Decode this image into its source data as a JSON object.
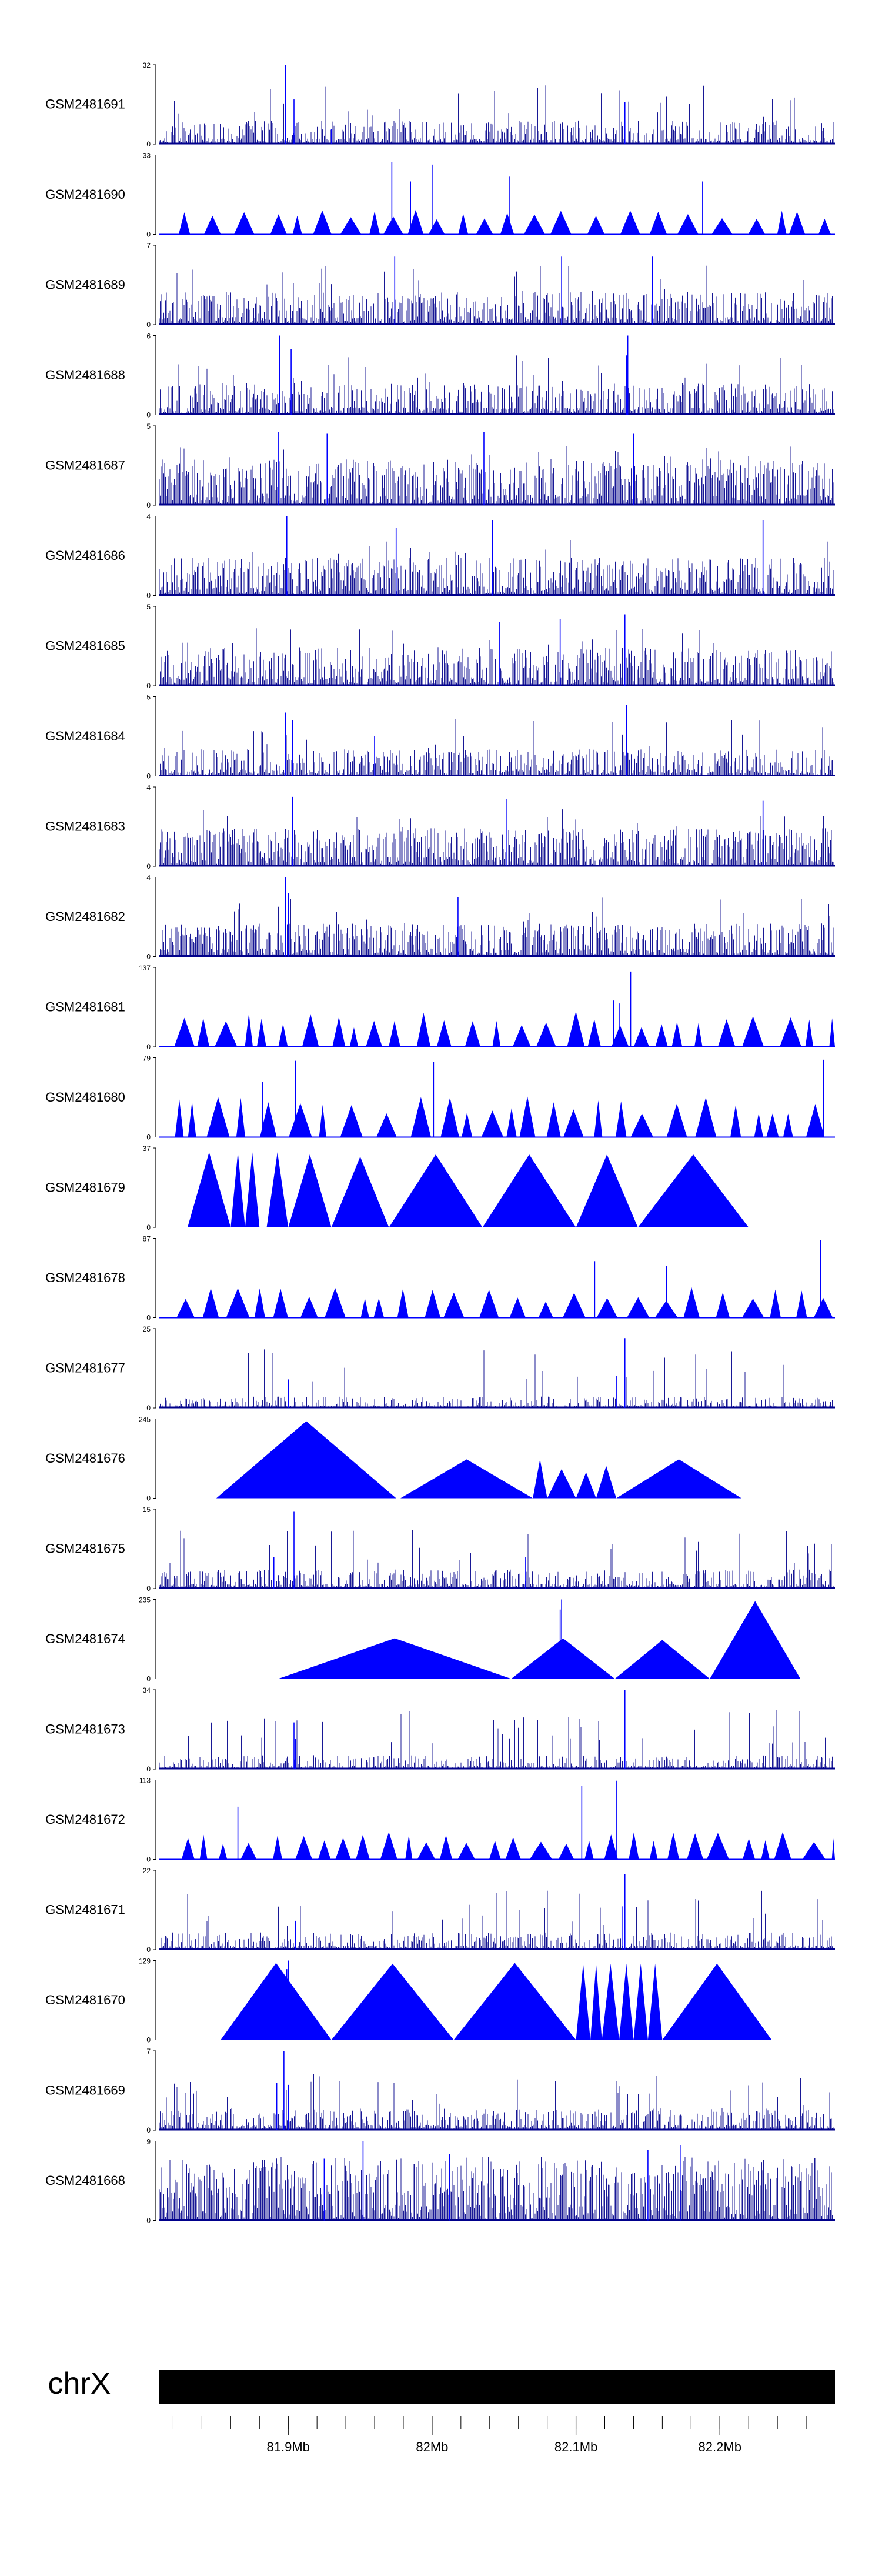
{
  "chart_data": {
    "type": "area",
    "chromosome": "chrX",
    "x_range_mb": [
      81.81,
      82.28
    ],
    "axis_ticks": [
      {
        "value": 81.9,
        "label": "81.9Mb"
      },
      {
        "value": 82.0,
        "label": "82Mb"
      },
      {
        "value": 82.1,
        "label": "82.1Mb"
      },
      {
        "value": 82.2,
        "label": "82.2Mb"
      }
    ],
    "tracks": [
      {
        "name": "GSM2481691",
        "max": 32,
        "min": 0,
        "style": "dense",
        "peaks": [
          [
            81.898,
            32
          ],
          [
            81.904,
            18
          ],
          [
            82.134,
            17
          ],
          [
            81.93,
            6
          ]
        ],
        "base": 4,
        "density": 0.35
      },
      {
        "name": "GSM2481690",
        "max": 33,
        "min": 0,
        "style": "sparse",
        "peaks": [
          [
            81.972,
            30
          ],
          [
            82.0,
            29
          ],
          [
            82.054,
            24
          ],
          [
            81.985,
            22
          ],
          [
            82.188,
            22
          ]
        ],
        "base": 10
      },
      {
        "name": "GSM2481689",
        "max": 7,
        "min": 0,
        "style": "dense",
        "peaks": [
          [
            82.09,
            6
          ],
          [
            82.153,
            6
          ],
          [
            81.974,
            6
          ]
        ],
        "base": 1.2,
        "density": 0.5
      },
      {
        "name": "GSM2481688",
        "max": 6,
        "min": 0,
        "style": "dense",
        "peaks": [
          [
            81.894,
            6
          ],
          [
            81.902,
            5
          ],
          [
            82.136,
            6
          ],
          [
            82.135,
            4.5
          ]
        ],
        "base": 1,
        "density": 0.45
      },
      {
        "name": "GSM2481687",
        "max": 5,
        "min": 0,
        "style": "dense",
        "peaks": [
          [
            81.893,
            4.6
          ],
          [
            81.927,
            4.5
          ],
          [
            82.036,
            4.6
          ],
          [
            82.14,
            4.5
          ]
        ],
        "base": 1.2,
        "density": 0.55
      },
      {
        "name": "GSM2481686",
        "max": 4,
        "min": 0,
        "style": "dense",
        "peaks": [
          [
            81.899,
            4
          ],
          [
            82.042,
            3.8
          ],
          [
            82.23,
            3.8
          ],
          [
            81.975,
            3.4
          ]
        ],
        "base": 0.8,
        "density": 0.5
      },
      {
        "name": "GSM2481685",
        "max": 5,
        "min": 0,
        "style": "dense",
        "peaks": [
          [
            82.134,
            4.5
          ],
          [
            82.089,
            4.2
          ],
          [
            82.047,
            4.0
          ]
        ],
        "base": 1,
        "density": 0.5
      },
      {
        "name": "GSM2481684",
        "max": 5,
        "min": 0,
        "style": "dense",
        "peaks": [
          [
            81.898,
            4
          ],
          [
            81.903,
            3.5
          ],
          [
            82.135,
            4.5
          ],
          [
            81.96,
            2.5
          ]
        ],
        "base": 0.7,
        "density": 0.4
      },
      {
        "name": "GSM2481683",
        "max": 4,
        "min": 0,
        "style": "dense",
        "peaks": [
          [
            81.903,
            3.5
          ],
          [
            82.052,
            3.4
          ],
          [
            82.23,
            3.3
          ]
        ],
        "base": 0.8,
        "density": 0.55
      },
      {
        "name": "GSM2481682",
        "max": 4,
        "min": 0,
        "style": "dense",
        "peaks": [
          [
            81.898,
            4
          ],
          [
            81.9,
            3.2
          ],
          [
            82.018,
            3.0
          ]
        ],
        "base": 0.7,
        "density": 0.5
      },
      {
        "name": "GSM2481681",
        "max": 137,
        "min": 0,
        "style": "sparse",
        "peaks": [
          [
            82.138,
            130
          ],
          [
            82.126,
            80
          ],
          [
            82.13,
            75
          ]
        ],
        "base": 60
      },
      {
        "name": "GSM2481680",
        "max": 79,
        "min": 0,
        "style": "sparse",
        "peaks": [
          [
            82.272,
            77
          ],
          [
            81.905,
            76
          ],
          [
            82.001,
            75
          ],
          [
            81.882,
            55
          ]
        ],
        "base": 40
      },
      {
        "name": "GSM2481679",
        "max": 37,
        "min": 0,
        "style": "triangles",
        "triangles": [
          [
            81.83,
            81.86,
            35
          ],
          [
            81.86,
            81.87,
            35
          ],
          [
            81.87,
            81.88,
            35
          ],
          [
            81.885,
            81.9,
            35
          ],
          [
            81.9,
            81.93,
            34
          ],
          [
            81.93,
            81.97,
            33
          ],
          [
            81.97,
            82.035,
            34
          ],
          [
            82.035,
            82.1,
            34
          ],
          [
            82.1,
            82.143,
            34
          ],
          [
            82.143,
            82.22,
            34
          ]
        ]
      },
      {
        "name": "GSM2481678",
        "max": 87,
        "min": 0,
        "style": "sparse",
        "peaks": [
          [
            82.27,
            85
          ],
          [
            82.113,
            62
          ],
          [
            82.163,
            57
          ]
        ],
        "base": 32
      },
      {
        "name": "GSM2481677",
        "max": 25,
        "min": 0,
        "style": "dense",
        "peaks": [
          [
            82.134,
            22
          ],
          [
            82.128,
            10
          ],
          [
            81.9,
            9
          ]
        ],
        "base": 1.5,
        "density": 0.35
      },
      {
        "name": "GSM2481676",
        "max": 245,
        "min": 0,
        "style": "triangles",
        "triangles": [
          [
            81.85,
            81.975,
            238
          ],
          [
            81.978,
            82.07,
            120
          ],
          [
            82.07,
            82.08,
            120
          ],
          [
            82.08,
            82.1,
            90
          ],
          [
            82.1,
            82.114,
            80
          ],
          [
            82.114,
            82.128,
            100
          ],
          [
            82.128,
            82.215,
            120
          ]
        ]
      },
      {
        "name": "GSM2481675",
        "max": 15,
        "min": 0,
        "style": "dense",
        "peaks": [
          [
            81.904,
            14.5
          ],
          [
            81.89,
            6
          ],
          [
            82.065,
            6
          ]
        ],
        "base": 1.5,
        "density": 0.4
      },
      {
        "name": "GSM2481674",
        "max": 235,
        "min": 0,
        "style": "triangles",
        "triangles": [
          [
            81.893,
            82.055,
            120
          ],
          [
            82.055,
            82.127,
            120
          ],
          [
            82.127,
            82.193,
            115
          ],
          [
            82.193,
            82.256,
            230
          ]
        ],
        "spikes": [
          [
            82.09,
            235
          ],
          [
            82.089,
            205
          ]
        ]
      },
      {
        "name": "GSM2481673",
        "max": 34,
        "min": 0,
        "style": "dense",
        "peaks": [
          [
            82.134,
            34
          ],
          [
            81.904,
            20
          ],
          [
            81.905,
            13
          ]
        ],
        "base": 2.5,
        "density": 0.35
      },
      {
        "name": "GSM2481672",
        "max": 113,
        "min": 0,
        "style": "sparse",
        "peaks": [
          [
            82.128,
            112
          ],
          [
            82.104,
            105
          ],
          [
            81.865,
            75
          ]
        ],
        "base": 40
      },
      {
        "name": "GSM2481671",
        "max": 22,
        "min": 0,
        "style": "dense",
        "peaks": [
          [
            82.134,
            21
          ],
          [
            82.132,
            12
          ],
          [
            81.905,
            8
          ]
        ],
        "base": 2,
        "density": 0.4
      },
      {
        "name": "GSM2481670",
        "max": 129,
        "min": 0,
        "style": "triangles",
        "triangles": [
          [
            81.853,
            81.93,
            125
          ],
          [
            81.93,
            82.015,
            124
          ],
          [
            82.015,
            82.1,
            125
          ],
          [
            82.1,
            82.11,
            124
          ],
          [
            82.11,
            82.118,
            124
          ],
          [
            82.118,
            82.13,
            124
          ],
          [
            82.13,
            82.14,
            124
          ],
          [
            82.14,
            82.15,
            124
          ],
          [
            82.15,
            82.16,
            124
          ],
          [
            82.16,
            82.236,
            124
          ]
        ],
        "spikes": [
          [
            81.9,
            129
          ],
          [
            81.899,
            115
          ]
        ]
      },
      {
        "name": "GSM2481669",
        "max": 7,
        "min": 0,
        "style": "dense",
        "peaks": [
          [
            81.897,
            7
          ],
          [
            81.892,
            4.2
          ],
          [
            81.9,
            4
          ]
        ],
        "base": 0.8,
        "density": 0.4
      },
      {
        "name": "GSM2481668",
        "max": 9,
        "min": 0,
        "style": "dense",
        "peaks": [
          [
            81.952,
            9
          ],
          [
            82.173,
            8.5
          ],
          [
            82.15,
            8
          ],
          [
            82.012,
            7.5
          ],
          [
            81.925,
            7
          ]
        ],
        "base": 3,
        "density": 0.55
      }
    ]
  }
}
